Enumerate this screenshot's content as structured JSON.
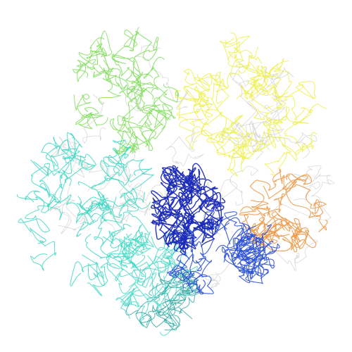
{
  "scene": {
    "background": "#ffffff",
    "description_visible_text": []
  },
  "chains": [
    {
      "name": "cyan-domain",
      "color": "#3ad6c1"
    },
    {
      "name": "green-domain",
      "color": "#7ddc56"
    },
    {
      "name": "yellow-domain",
      "color": "#ecef4a"
    },
    {
      "name": "orange-domain",
      "color": "#eb9a4a"
    },
    {
      "name": "blue-domain",
      "color": "#2a4fd6"
    },
    {
      "name": "navy-domain",
      "color": "#1a2ab8"
    },
    {
      "name": "teal-domain",
      "color": "#2aa6a0"
    },
    {
      "name": "gray-domain",
      "color": "#b9b9b9"
    }
  ]
}
